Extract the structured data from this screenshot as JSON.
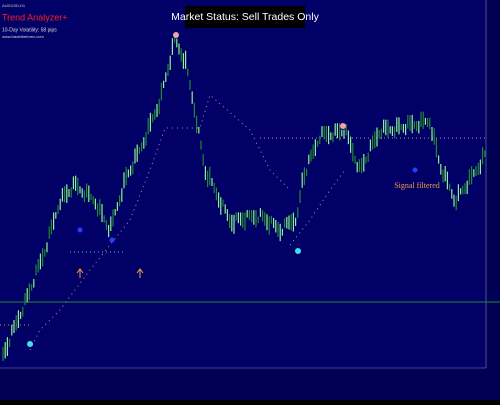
{
  "header": {
    "indicator": "Trend Analyzer+",
    "volatility": "10-Day Volatility: 58 pips",
    "website": "www.tradetheforex.com"
  },
  "banner": {
    "status": "Market Status: Sell Trades Only"
  },
  "annotation": {
    "signal": "Signal filtered"
  }
}
